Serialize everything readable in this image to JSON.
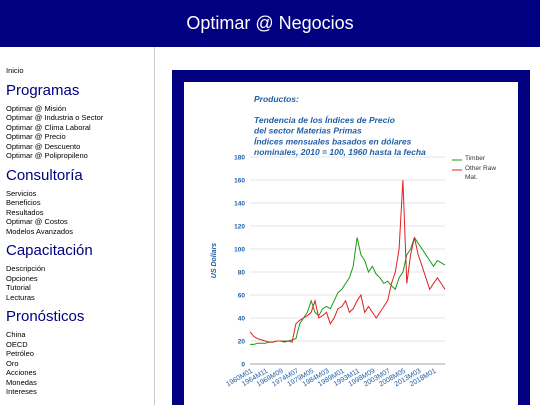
{
  "header": {
    "title": "Optimar @ Negocios"
  },
  "nav": {
    "home": "Inicio",
    "sections": [
      {
        "title": "Programas",
        "links": [
          "Optimar @ Misión",
          "Optimar @ Industria o Sector",
          "Optimar @ Clima Laboral",
          "Optimar @ Precio",
          "Optimar @ Descuento",
          "Optimar @ Polipropileno"
        ]
      },
      {
        "title": "Consultoría",
        "links": [
          "Servicios",
          "Beneficios",
          "Resultados",
          "Optimar @ Costos",
          "Modelos Avanzados"
        ]
      },
      {
        "title": "Capacitación",
        "links": [
          "Descripción",
          "Opciones",
          "Tutorial",
          "Lecturas"
        ]
      },
      {
        "title": "Pronósticos",
        "links": [
          "China",
          "OECD",
          "Petróleo",
          "Oro",
          "Acciones",
          "Monedas",
          "Intereses"
        ]
      }
    ]
  },
  "chart_data": {
    "type": "line",
    "title": "Productos:",
    "subtitle_lines": [
      "Tendencia de los Índices de Precio",
      "del sector Materias Primas",
      "Índices mensuales basados en dólares",
      "nominales, 2010 = 100, 1960 hasta la fecha"
    ],
    "y_label": "US Dollars",
    "categories": [
      "1960M01",
      null,
      null,
      null,
      "1964M11",
      null,
      null,
      null,
      "1969M09",
      null,
      null,
      null,
      "1974M07",
      null,
      null,
      null,
      "1979M05",
      null,
      null,
      null,
      "1984M03",
      null,
      null,
      null,
      "1989M01",
      null,
      null,
      null,
      "1993M11",
      null,
      null,
      null,
      "1998M09",
      null,
      null,
      null,
      "2003M07",
      null,
      null,
      null,
      "2008M05",
      null,
      null,
      null,
      "2013M03",
      null,
      null,
      null,
      "2018M01",
      null,
      null,
      null
    ],
    "series": [
      {
        "name": "Timber",
        "color": "#1a9a1a",
        "values": [
          17,
          17,
          18,
          18,
          18,
          19,
          19,
          20,
          20,
          20,
          20,
          21,
          22,
          35,
          40,
          45,
          55,
          45,
          42,
          48,
          50,
          48,
          55,
          62,
          65,
          70,
          75,
          85,
          110,
          95,
          90,
          80,
          85,
          78,
          75,
          70,
          72,
          68,
          65,
          75,
          80,
          95,
          100,
          110,
          105,
          100,
          95,
          90,
          85,
          90,
          88,
          86
        ]
      },
      {
        "name": "Other Raw Mat.",
        "color": "#e02020",
        "values": [
          28,
          24,
          22,
          21,
          20,
          19,
          19,
          20,
          20,
          19,
          20,
          19,
          35,
          38,
          40,
          42,
          45,
          55,
          40,
          42,
          45,
          35,
          40,
          48,
          50,
          55,
          45,
          48,
          55,
          60,
          45,
          50,
          45,
          40,
          45,
          50,
          55,
          70,
          80,
          100,
          160,
          70,
          95,
          110,
          95,
          85,
          75,
          65,
          70,
          75,
          70,
          65
        ]
      }
    ],
    "ylim": [
      0,
      180
    ],
    "yticks": [
      0,
      20,
      40,
      60,
      80,
      100,
      120,
      140,
      160,
      180
    ],
    "grid": true,
    "legend": "right"
  }
}
